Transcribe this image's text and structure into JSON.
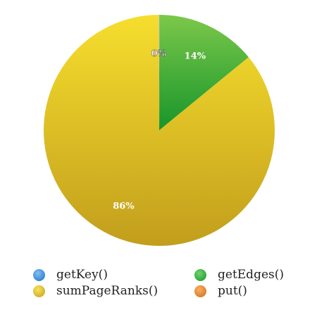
{
  "chart_data": {
    "type": "pie",
    "categories": [
      "getKey()",
      "getEdges()",
      "sumPageRanks()",
      "put()"
    ],
    "values": [
      0.1,
      14,
      86,
      0
    ],
    "data_labels": [
      "0%",
      "14%",
      "86%",
      ""
    ],
    "colors": [
      "#3a8fd8",
      "#2fa23a",
      "#e4c42a",
      "#e8821a"
    ],
    "legend_placement": "bottom"
  }
}
